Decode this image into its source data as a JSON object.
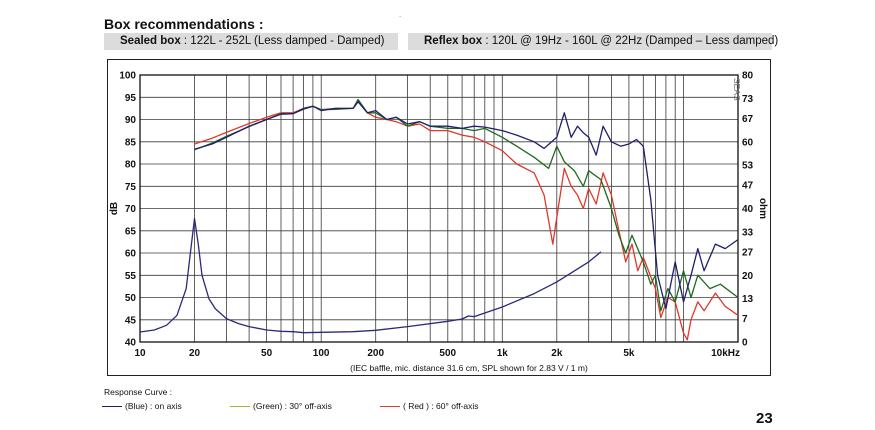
{
  "header": {
    "title": "Box recommendations :",
    "top_mark": "."
  },
  "recommendations": {
    "sealed": {
      "label": "Sealed box",
      "value": " : 122L - 252L (Less damped - Damped)"
    },
    "reflex": {
      "label": "Reflex box",
      "value": " : 120L @ 19Hz - 160L @ 22Hz (Damped – Less damped)"
    }
  },
  "chart_data": {
    "type": "line",
    "xscale": "log",
    "xlim": [
      10,
      20000
    ],
    "ylim": [
      40,
      100
    ],
    "y2lim": [
      0,
      80
    ],
    "ylabel": "dB",
    "y2label": "ohm",
    "x_ticks": [
      10,
      20,
      50,
      100,
      200,
      500,
      1000,
      2000,
      5000,
      10000
    ],
    "x_tick_labels": [
      "10",
      "20",
      "50",
      "100",
      "200",
      "500",
      "1k",
      "2k",
      "5k",
      "10kHz"
    ],
    "y_ticks": [
      40,
      45,
      50,
      55,
      60,
      65,
      70,
      75,
      80,
      85,
      90,
      95,
      100
    ],
    "y_tick_labels": [
      "40",
      "45",
      "50",
      "55",
      "60",
      "65",
      "70",
      "75",
      "80",
      "85",
      "90",
      "95",
      "100"
    ],
    "y2_ticks": [
      0,
      7,
      13,
      20,
      27,
      33,
      40,
      47,
      53,
      60,
      67,
      73,
      80
    ],
    "y2_tick_labels": [
      "0",
      "7",
      "13",
      "20",
      "27",
      "33",
      "40",
      "47",
      "53",
      "60",
      "67",
      "73",
      "80"
    ],
    "caption": "(IEC baffle, mic. distance 31.6 cm, SPL shown for 2.83 V / 1 m)",
    "watermark": "SEAS",
    "grid": true,
    "series": [
      {
        "name": "(Blue) : on axis",
        "color": "#1f1f6e",
        "axis": "left",
        "points": [
          [
            20,
            83.3
          ],
          [
            25,
            84.5
          ],
          [
            30,
            86
          ],
          [
            40,
            88.5
          ],
          [
            50,
            90
          ],
          [
            60,
            91.2
          ],
          [
            70,
            91.3
          ],
          [
            80,
            92.5
          ],
          [
            90,
            93
          ],
          [
            100,
            92
          ],
          [
            120,
            92.5
          ],
          [
            150,
            92.5
          ],
          [
            160,
            94
          ],
          [
            180,
            91.5
          ],
          [
            200,
            92
          ],
          [
            230,
            90
          ],
          [
            260,
            90.5
          ],
          [
            300,
            89
          ],
          [
            350,
            89.5
          ],
          [
            400,
            88.5
          ],
          [
            500,
            88.5
          ],
          [
            600,
            88
          ],
          [
            700,
            88.5
          ],
          [
            800,
            88.3
          ],
          [
            1000,
            87.5
          ],
          [
            1200,
            86.5
          ],
          [
            1500,
            85
          ],
          [
            1700,
            83.5
          ],
          [
            2000,
            86
          ],
          [
            2200,
            91.5
          ],
          [
            2400,
            86
          ],
          [
            2600,
            88.5
          ],
          [
            2800,
            87
          ],
          [
            3000,
            86
          ],
          [
            3300,
            82
          ],
          [
            3600,
            88.5
          ],
          [
            4000,
            85
          ],
          [
            4500,
            84
          ],
          [
            5000,
            84.5
          ],
          [
            5500,
            85.5
          ],
          [
            6000,
            84
          ],
          [
            6600,
            72
          ],
          [
            7200,
            55
          ],
          [
            8000,
            47.5
          ],
          [
            9000,
            58
          ],
          [
            10000,
            49
          ],
          [
            11000,
            55
          ],
          [
            12000,
            61
          ],
          [
            13000,
            56
          ],
          [
            15000,
            62
          ],
          [
            17000,
            61
          ],
          [
            20000,
            63
          ]
        ]
      },
      {
        "name": "(Green) : 30° off-axis",
        "color": "#1e6b1e",
        "axis": "left",
        "points": [
          [
            20,
            83.2
          ],
          [
            25,
            84.7
          ],
          [
            30,
            86.2
          ],
          [
            40,
            88.4
          ],
          [
            50,
            90
          ],
          [
            60,
            91.3
          ],
          [
            70,
            91.3
          ],
          [
            80,
            92.3
          ],
          [
            90,
            93
          ],
          [
            100,
            92.2
          ],
          [
            120,
            92.3
          ],
          [
            150,
            92.5
          ],
          [
            160,
            94.5
          ],
          [
            180,
            91.5
          ],
          [
            200,
            91.5
          ],
          [
            230,
            90
          ],
          [
            260,
            90.5
          ],
          [
            300,
            88.5
          ],
          [
            350,
            89.5
          ],
          [
            400,
            88.5
          ],
          [
            500,
            88
          ],
          [
            600,
            88
          ],
          [
            700,
            87.5
          ],
          [
            800,
            88
          ],
          [
            1000,
            86
          ],
          [
            1200,
            84
          ],
          [
            1500,
            81.5
          ],
          [
            1800,
            79
          ],
          [
            2000,
            84
          ],
          [
            2200,
            80.5
          ],
          [
            2500,
            78.5
          ],
          [
            2800,
            75
          ],
          [
            3000,
            78.5
          ],
          [
            3500,
            76.5
          ],
          [
            4000,
            70
          ],
          [
            4400,
            64
          ],
          [
            4800,
            60
          ],
          [
            5200,
            64
          ],
          [
            6000,
            58
          ],
          [
            6600,
            53
          ],
          [
            7000,
            55
          ],
          [
            7500,
            47
          ],
          [
            8200,
            52
          ],
          [
            9000,
            49
          ],
          [
            10000,
            56
          ],
          [
            11000,
            50
          ],
          [
            12000,
            55
          ],
          [
            14000,
            52
          ],
          [
            16000,
            53
          ],
          [
            20000,
            50
          ]
        ]
      },
      {
        "name": "( Red ) : 60° off-axis",
        "color": "#e0382b",
        "axis": "left",
        "points": [
          [
            20,
            84.5
          ],
          [
            25,
            85.8
          ],
          [
            30,
            87.1
          ],
          [
            40,
            89.1
          ],
          [
            50,
            90.5
          ],
          [
            60,
            91.5
          ],
          [
            70,
            91.5
          ],
          [
            80,
            92.5
          ],
          [
            90,
            93
          ],
          [
            100,
            92.2
          ],
          [
            120,
            92.5
          ],
          [
            150,
            92.5
          ],
          [
            160,
            94
          ],
          [
            180,
            91.5
          ],
          [
            200,
            90.5
          ],
          [
            230,
            90
          ],
          [
            260,
            89.5
          ],
          [
            300,
            88.5
          ],
          [
            350,
            89
          ],
          [
            400,
            87.5
          ],
          [
            500,
            87.5
          ],
          [
            600,
            86.5
          ],
          [
            700,
            86
          ],
          [
            800,
            85
          ],
          [
            1000,
            83
          ],
          [
            1200,
            80
          ],
          [
            1500,
            78
          ],
          [
            1700,
            73
          ],
          [
            1900,
            62
          ],
          [
            2000,
            68
          ],
          [
            2200,
            79
          ],
          [
            2400,
            75
          ],
          [
            2600,
            73
          ],
          [
            2800,
            70
          ],
          [
            3000,
            74.5
          ],
          [
            3300,
            71
          ],
          [
            3600,
            78
          ],
          [
            4000,
            73
          ],
          [
            4400,
            65
          ],
          [
            4800,
            58
          ],
          [
            5200,
            62
          ],
          [
            5600,
            56
          ],
          [
            6000,
            59
          ],
          [
            7000,
            52
          ],
          [
            7500,
            45.5
          ],
          [
            8200,
            50
          ],
          [
            9000,
            49
          ],
          [
            10000,
            42
          ],
          [
            10500,
            40.5
          ],
          [
            11000,
            45
          ],
          [
            12000,
            49
          ],
          [
            13000,
            47
          ],
          [
            15000,
            51
          ],
          [
            17000,
            48
          ],
          [
            20000,
            46
          ]
        ]
      },
      {
        "name": "Impedance",
        "color": "#2a2a7a",
        "axis": "right",
        "points": [
          [
            10,
            3
          ],
          [
            12,
            3.6
          ],
          [
            14,
            5
          ],
          [
            16,
            8
          ],
          [
            18,
            16
          ],
          [
            19,
            27
          ],
          [
            20,
            37
          ],
          [
            21,
            29
          ],
          [
            22,
            20
          ],
          [
            24,
            13
          ],
          [
            26,
            10
          ],
          [
            30,
            7
          ],
          [
            35,
            5.5
          ],
          [
            40,
            4.6
          ],
          [
            50,
            3.6
          ],
          [
            60,
            3.2
          ],
          [
            70,
            3.1
          ],
          [
            80,
            2.8
          ],
          [
            100,
            2.9
          ],
          [
            150,
            3.1
          ],
          [
            200,
            3.5
          ],
          [
            300,
            4.6
          ],
          [
            500,
            6.2
          ],
          [
            600,
            6.9
          ],
          [
            650,
            7.8
          ],
          [
            700,
            7.6
          ],
          [
            1000,
            10.5
          ],
          [
            1500,
            14.5
          ],
          [
            2000,
            18
          ],
          [
            3000,
            24
          ],
          [
            3500,
            27
          ]
        ]
      }
    ]
  },
  "legend": {
    "title": "Response Curve :",
    "items": [
      {
        "label": "(Blue)  : on axis",
        "color": "#1f1f6e"
      },
      {
        "label": "(Green) : 30° off-axis",
        "color": "#8fbf3a"
      },
      {
        "label": "( Red ) : 60° off-axis",
        "color": "#e0382b"
      }
    ]
  },
  "page_number": "23"
}
